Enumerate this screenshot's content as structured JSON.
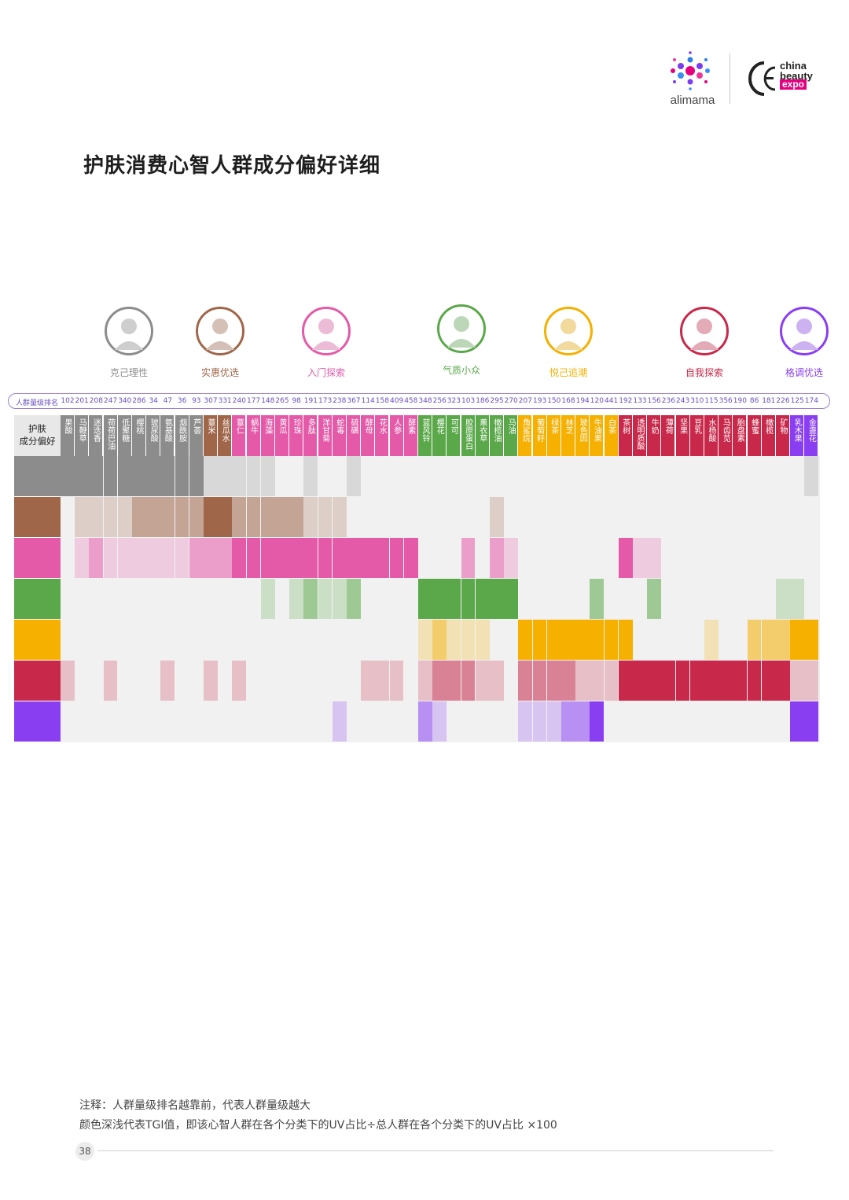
{
  "brand": {
    "left_logo_text": "alimama",
    "right_logo_lines": [
      "china",
      "beauty",
      "expo"
    ]
  },
  "title": "护肤消费心智人群成分偏好详细",
  "personas": [
    {
      "name": "克己理性",
      "color": "#8c8c8c"
    },
    {
      "name": "实惠优选",
      "color": "#a0664a"
    },
    {
      "name": "入门探索",
      "color": "#e45aa8"
    },
    {
      "name": "气质小众",
      "color": "#5aa84a"
    },
    {
      "name": "悦己追潮",
      "color": "#f5b000"
    },
    {
      "name": "自我探索",
      "color": "#c8284a"
    },
    {
      "name": "格调优选",
      "color": "#8a3ef2"
    }
  ],
  "rank_label": "人群量级排名",
  "header_line1": "护肤",
  "header_line2": "成分偏好",
  "note_line1": "注释：人群量级排名越靠前，代表人群量级越大",
  "note_line2": "颜色深浅代表TGI值，即该心智人群在各个分类下的UV占比÷总人群在各个分类下的UV占比 ×100",
  "page_number": "38",
  "chart_data": {
    "type": "heatmap",
    "title": "护肤消费心智人群成分偏好详细",
    "xlabel": "护肤成分偏好",
    "ylabel": "",
    "rows": [
      "克己理性",
      "实惠优选",
      "入门探索",
      "气质小众",
      "悦己追潮",
      "自我探索",
      "格调优选"
    ],
    "row_colors": [
      "#8c8c8c",
      "#a0664a",
      "#e45aa8",
      "#5aa84a",
      "#f5b000",
      "#c8284a",
      "#8a3ef2"
    ],
    "columns": [
      "果酸",
      "马鞭草",
      "迷迭香",
      "荷荷巴油",
      "低聚糖",
      "樱桃",
      "玻尿酸",
      "氨基酸",
      "烟酰胺",
      "芦荟",
      "薏米",
      "丝瓜水",
      "薏仁",
      "蜗牛",
      "海藻",
      "黄瓜",
      "珍珠",
      "多肽",
      "洋甘菊",
      "蛇毒",
      "硫磺",
      "酵母",
      "花水",
      "人参",
      "酵素",
      "蓝风铃",
      "樱花",
      "可可",
      "胶原蛋白",
      "薰衣草",
      "橄榄油",
      "马油",
      "角鲨烷",
      "葡萄籽",
      "绿茶",
      "林芝",
      "玻色因",
      "牛油果",
      "白茶",
      "茶树",
      "透明质酸",
      "牛奶",
      "薄荷",
      "坚果",
      "豆乳",
      "水杨酸",
      "马齿苋",
      "胎盘素",
      "蜂蜜",
      "橄榄",
      "矿物",
      "乳木果",
      "金盏花"
    ],
    "column_group": [
      0,
      0,
      0,
      0,
      0,
      0,
      0,
      0,
      0,
      0,
      1,
      1,
      2,
      2,
      2,
      2,
      2,
      2,
      2,
      2,
      2,
      2,
      2,
      2,
      2,
      3,
      3,
      3,
      3,
      3,
      3,
      3,
      4,
      4,
      4,
      4,
      4,
      4,
      4,
      5,
      5,
      5,
      5,
      5,
      5,
      5,
      5,
      5,
      5,
      5,
      5,
      6,
      6
    ],
    "user_scale_rank": [
      102,
      201,
      208,
      247,
      340,
      286,
      34,
      47,
      36,
      93,
      307,
      331,
      240,
      177,
      148,
      265,
      98,
      191,
      173,
      238,
      367,
      114,
      158,
      409,
      458,
      348,
      256,
      323,
      103,
      186,
      295,
      270,
      207,
      193,
      150,
      168,
      194,
      120,
      441,
      192,
      133,
      156,
      236,
      243,
      310,
      115,
      356,
      190,
      86,
      181,
      226,
      125,
      174
    ],
    "tgi_level_scale": "0 = none, 1 = light, 2 = medium, 3 = strong",
    "values": [
      [
        3,
        3,
        3,
        3,
        3,
        3,
        3,
        3,
        3,
        3,
        1,
        1,
        1,
        1,
        1,
        0,
        0,
        1,
        0,
        0,
        1,
        0,
        0,
        0,
        0,
        0,
        0,
        0,
        0,
        0,
        0,
        0,
        0,
        0,
        0,
        0,
        0,
        0,
        0,
        0,
        0,
        0,
        0,
        0,
        0,
        0,
        0,
        0,
        0,
        0,
        0,
        0,
        1
      ],
      [
        0,
        1,
        1,
        1,
        1,
        2,
        2,
        2,
        2,
        2,
        3,
        3,
        2,
        2,
        2,
        2,
        2,
        1,
        1,
        1,
        0,
        0,
        0,
        0,
        0,
        0,
        0,
        0,
        0,
        0,
        1,
        0,
        0,
        0,
        0,
        0,
        0,
        0,
        0,
        0,
        0,
        0,
        0,
        0,
        0,
        0,
        0,
        0,
        0,
        0,
        0,
        0,
        0
      ],
      [
        0,
        1,
        2,
        1,
        1,
        1,
        1,
        1,
        1,
        2,
        2,
        2,
        3,
        3,
        3,
        3,
        3,
        3,
        3,
        3,
        3,
        3,
        3,
        3,
        3,
        0,
        0,
        0,
        2,
        0,
        2,
        1,
        0,
        0,
        0,
        0,
        0,
        0,
        0,
        3,
        1,
        1,
        0,
        0,
        0,
        0,
        0,
        0,
        0,
        0,
        0,
        0,
        0
      ],
      [
        0,
        0,
        0,
        0,
        0,
        0,
        0,
        0,
        0,
        0,
        0,
        0,
        0,
        0,
        1,
        0,
        1,
        2,
        1,
        1,
        2,
        0,
        0,
        0,
        0,
        3,
        3,
        3,
        3,
        3,
        3,
        3,
        0,
        0,
        0,
        0,
        0,
        2,
        0,
        0,
        0,
        2,
        0,
        0,
        0,
        0,
        0,
        0,
        0,
        0,
        1,
        1,
        0
      ],
      [
        0,
        0,
        0,
        0,
        0,
        0,
        0,
        0,
        0,
        0,
        0,
        0,
        0,
        0,
        0,
        0,
        0,
        0,
        0,
        0,
        0,
        0,
        0,
        0,
        0,
        1,
        2,
        1,
        1,
        1,
        0,
        0,
        3,
        3,
        3,
        3,
        3,
        3,
        3,
        3,
        0,
        0,
        0,
        0,
        0,
        1,
        0,
        0,
        2,
        2,
        2,
        3,
        3
      ],
      [
        1,
        0,
        0,
        1,
        0,
        0,
        0,
        1,
        0,
        0,
        1,
        0,
        1,
        0,
        0,
        0,
        0,
        0,
        0,
        0,
        0,
        1,
        1,
        1,
        0,
        1,
        2,
        2,
        2,
        1,
        1,
        0,
        2,
        2,
        2,
        2,
        1,
        1,
        1,
        3,
        3,
        3,
        3,
        3,
        3,
        3,
        3,
        3,
        3,
        3,
        3,
        1,
        1
      ],
      [
        0,
        0,
        0,
        0,
        0,
        0,
        0,
        0,
        0,
        0,
        0,
        0,
        0,
        0,
        0,
        0,
        0,
        0,
        0,
        1,
        0,
        0,
        0,
        0,
        0,
        2,
        1,
        0,
        0,
        0,
        0,
        0,
        1,
        1,
        1,
        2,
        2,
        3,
        0,
        0,
        0,
        0,
        0,
        0,
        0,
        0,
        0,
        0,
        0,
        0,
        0,
        3,
        3
      ]
    ]
  }
}
